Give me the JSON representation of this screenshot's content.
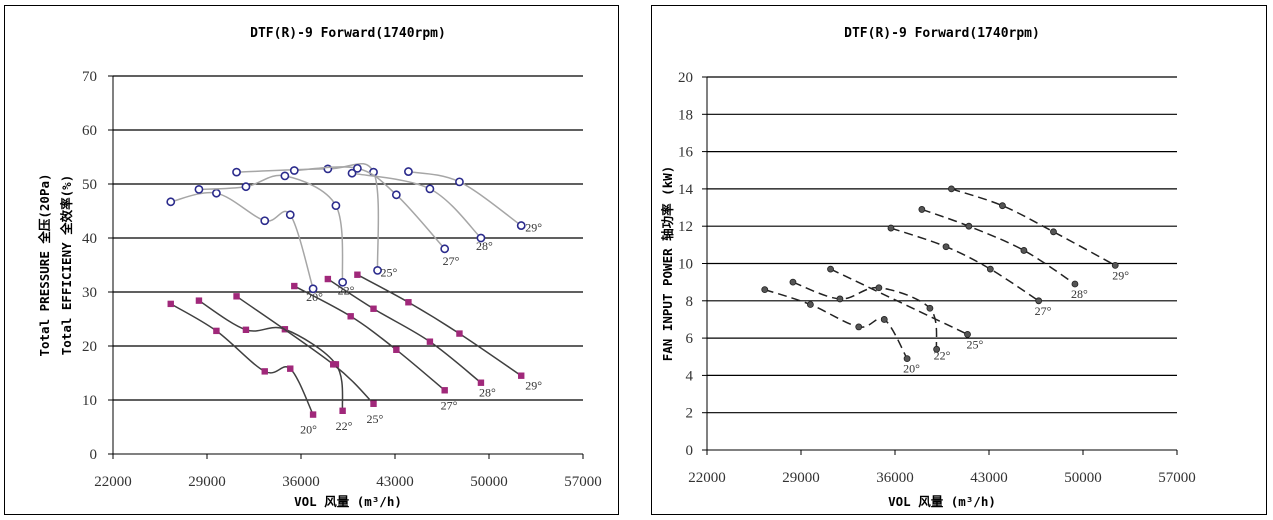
{
  "chart_data": [
    {
      "type": "line",
      "title": "DTF(R)-9 Forward(1740rpm)",
      "xlabel": "VOL 风量 (m³/h)",
      "ylabel": "Total PRESSURE 全压(20Pa)",
      "ylabel2": "Total EFFICIENY 全效率(%)",
      "xlim": [
        22000,
        57000
      ],
      "ylim": [
        0,
        70
      ],
      "x_ticks": [
        "22000",
        "29000",
        "36000",
        "43000",
        "50000",
        "57000"
      ],
      "y_ticks": [
        "0",
        "10",
        "20",
        "30",
        "40",
        "50",
        "60",
        "70"
      ],
      "grid": "horizontal",
      "series": [
        {
          "group": "efficiency",
          "label": "20°",
          "marker": "circle",
          "color": "#2b2b8c",
          "line_color": "#a6a6a6",
          "points": [
            [
              26300,
              46.7
            ],
            [
              29700,
              48.3
            ],
            [
              33300,
              43.2
            ],
            [
              35200,
              44.3
            ],
            [
              36900,
              30.6
            ]
          ]
        },
        {
          "group": "efficiency",
          "label": "22°",
          "marker": "circle",
          "color": "#2b2b8c",
          "line_color": "#a6a6a6",
          "points": [
            [
              28400,
              49.0
            ],
            [
              31900,
              49.5
            ],
            [
              34800,
              51.5
            ],
            [
              38600,
              46.0
            ],
            [
              39100,
              31.8
            ]
          ]
        },
        {
          "group": "efficiency",
          "label": "25°",
          "marker": "circle",
          "color": "#2b2b8c",
          "line_color": "#a6a6a6",
          "points": [
            [
              31200,
              52.2
            ],
            [
              38000,
              52.8
            ],
            [
              41400,
              52.2
            ],
            [
              41700,
              34.0
            ]
          ]
        },
        {
          "group": "efficiency",
          "label": "27°",
          "marker": "circle",
          "color": "#2b2b8c",
          "line_color": "#a6a6a6",
          "points": [
            [
              35500,
              52.5
            ],
            [
              40200,
              52.9
            ],
            [
              43100,
              48.0
            ],
            [
              46700,
              38.0
            ]
          ]
        },
        {
          "group": "efficiency",
          "label": "28°",
          "marker": "circle",
          "color": "#2b2b8c",
          "line_color": "#a6a6a6",
          "points": [
            [
              39800,
              52.0
            ],
            [
              45600,
              49.1
            ],
            [
              49400,
              40.0
            ]
          ]
        },
        {
          "group": "efficiency",
          "label": "29°",
          "marker": "circle",
          "color": "#2b2b8c",
          "line_color": "#a6a6a6",
          "points": [
            [
              44000,
              52.3
            ],
            [
              47800,
              50.4
            ],
            [
              52400,
              42.3
            ]
          ]
        },
        {
          "group": "pressure",
          "label": "20°",
          "marker": "square",
          "color": "#a0287a",
          "line_color": "#404040",
          "points": [
            [
              26300,
              27.8
            ],
            [
              29700,
              22.8
            ],
            [
              33300,
              15.3
            ],
            [
              35200,
              15.8
            ],
            [
              36900,
              7.3
            ]
          ]
        },
        {
          "group": "pressure",
          "label": "22°",
          "marker": "square",
          "color": "#a0287a",
          "line_color": "#404040",
          "points": [
            [
              28400,
              28.4
            ],
            [
              31900,
              23.0
            ],
            [
              34800,
              23.1
            ],
            [
              38600,
              16.6
            ],
            [
              39100,
              8.0
            ]
          ]
        },
        {
          "group": "pressure",
          "label": "25°",
          "marker": "square",
          "color": "#a0287a",
          "line_color": "#404040",
          "points": [
            [
              31200,
              29.2
            ],
            [
              38400,
              16.6
            ],
            [
              41400,
              9.3
            ]
          ]
        },
        {
          "group": "pressure",
          "label": "27°",
          "marker": "square",
          "color": "#a0287a",
          "line_color": "#404040",
          "points": [
            [
              35500,
              31.1
            ],
            [
              39700,
              25.5
            ],
            [
              43100,
              19.3
            ],
            [
              46700,
              11.8
            ]
          ]
        },
        {
          "group": "pressure",
          "label": "28°",
          "marker": "square",
          "color": "#a0287a",
          "line_color": "#404040",
          "points": [
            [
              38000,
              32.4
            ],
            [
              41400,
              26.9
            ],
            [
              45600,
              20.8
            ],
            [
              49400,
              13.2
            ]
          ]
        },
        {
          "group": "pressure",
          "label": "29°",
          "marker": "square",
          "color": "#a0287a",
          "line_color": "#404040",
          "points": [
            [
              40200,
              33.2
            ],
            [
              44000,
              28.1
            ],
            [
              47800,
              22.3
            ],
            [
              52400,
              14.5
            ]
          ]
        }
      ]
    },
    {
      "type": "line",
      "title": "DTF(R)-9 Forward(1740rpm)",
      "xlabel": "VOL 风量 (m³/h)",
      "ylabel": "FAN INPUT POWER 轴功率 (kW)",
      "xlim": [
        22000,
        57000
      ],
      "ylim": [
        0,
        20
      ],
      "x_ticks": [
        "22000",
        "29000",
        "36000",
        "43000",
        "50000",
        "57000"
      ],
      "y_ticks": [
        "0",
        "2",
        "4",
        "6",
        "8",
        "10",
        "12",
        "14",
        "16",
        "18",
        "20"
      ],
      "grid": "horizontal",
      "series": [
        {
          "group": "power",
          "label": "20°",
          "marker": "dot",
          "color": "#555555",
          "line_color": "#222222",
          "points": [
            [
              26300,
              8.6
            ],
            [
              29700,
              7.8
            ],
            [
              33300,
              6.6
            ],
            [
              35200,
              7.0
            ],
            [
              36900,
              4.9
            ]
          ]
        },
        {
          "group": "power",
          "label": "22°",
          "marker": "dot",
          "color": "#555555",
          "line_color": "#222222",
          "points": [
            [
              28400,
              9.0
            ],
            [
              31900,
              8.1
            ],
            [
              34800,
              8.7
            ],
            [
              38600,
              7.6
            ],
            [
              39100,
              5.4
            ]
          ]
        },
        {
          "group": "power",
          "label": "25°",
          "marker": "dot",
          "color": "#555555",
          "line_color": "#222222",
          "points": [
            [
              31200,
              9.7
            ],
            [
              41400,
              6.2
            ]
          ]
        },
        {
          "group": "power",
          "label": "27°",
          "marker": "dot",
          "color": "#555555",
          "line_color": "#222222",
          "points": [
            [
              35700,
              11.9
            ],
            [
              39800,
              10.9
            ],
            [
              43100,
              9.7
            ],
            [
              46700,
              8.0
            ]
          ]
        },
        {
          "group": "power",
          "label": "28°",
          "marker": "dot",
          "color": "#555555",
          "line_color": "#222222",
          "points": [
            [
              38000,
              12.9
            ],
            [
              41500,
              12.0
            ],
            [
              45600,
              10.7
            ],
            [
              49400,
              8.9
            ]
          ]
        },
        {
          "group": "power",
          "label": "29°",
          "marker": "dot",
          "color": "#555555",
          "line_color": "#222222",
          "points": [
            [
              40200,
              14.0
            ],
            [
              44000,
              13.1
            ],
            [
              47800,
              11.7
            ],
            [
              52400,
              9.9
            ]
          ]
        }
      ]
    }
  ]
}
